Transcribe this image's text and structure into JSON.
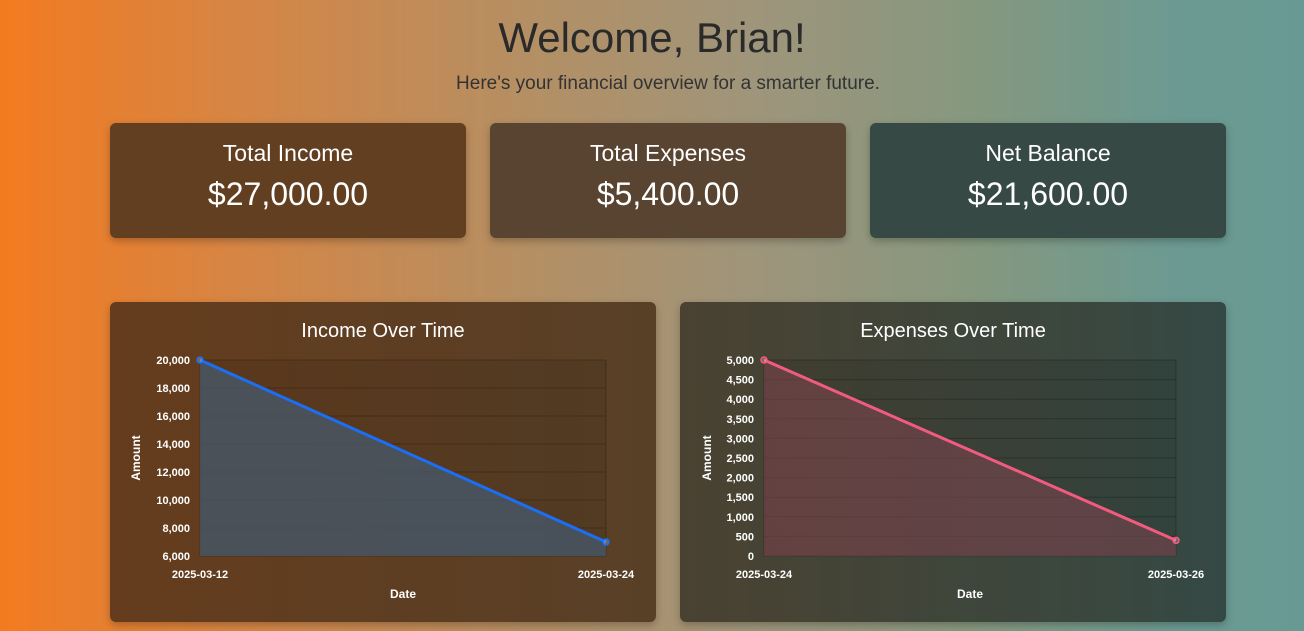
{
  "header": {
    "title": "Welcome, Brian!",
    "subtitle": "Here's your financial overview for a smarter future."
  },
  "summary": [
    {
      "label": "Total Income",
      "value": "$27,000.00"
    },
    {
      "label": "Total Expenses",
      "value": "$5,400.00"
    },
    {
      "label": "Net Balance",
      "value": "$21,600.00"
    }
  ],
  "colors": {
    "income_line": "#1a6ff5",
    "expense_line": "#f25b7f"
  },
  "chart_data": [
    {
      "type": "area",
      "title": "Income Over Time",
      "xlabel": "Date",
      "ylabel": "Amount",
      "categories": [
        "2025-03-12",
        "2025-03-24"
      ],
      "series": [
        {
          "values": [
            20000,
            7000
          ]
        }
      ],
      "ylim": [
        6000,
        20000
      ],
      "yticks": [
        "20,000",
        "18,000",
        "16,000",
        "14,000",
        "12,000",
        "10,000",
        "8,000",
        "6,000"
      ],
      "grid": true
    },
    {
      "type": "area",
      "title": "Expenses Over Time",
      "xlabel": "Date",
      "ylabel": "Amount",
      "categories": [
        "2025-03-24",
        "2025-03-26"
      ],
      "series": [
        {
          "values": [
            5000,
            400
          ]
        }
      ],
      "ylim": [
        0,
        5000
      ],
      "yticks": [
        "5,000",
        "4,500",
        "4,000",
        "3,500",
        "3,000",
        "2,500",
        "2,000",
        "1,500",
        "1,000",
        "500",
        "0"
      ],
      "grid": true
    }
  ]
}
